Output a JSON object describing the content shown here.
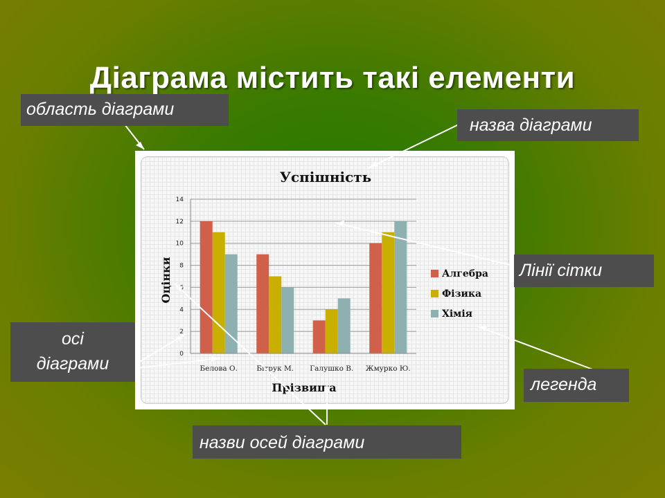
{
  "slide": {
    "title": "Діаграма містить такі елементи"
  },
  "callouts": {
    "chart_area": "область діаграми",
    "chart_title": "назва діаграми",
    "gridlines": "Лінії сітки",
    "axes_line1": "осі",
    "axes_line2": "діаграми",
    "legend": "легенда",
    "axis_titles": "назви осей діаграми"
  },
  "colors": {
    "algebra": "#d0604a",
    "physics": "#c9b000",
    "chemistry": "#8fb0b0",
    "callout_bg": "#4d4d4d"
  },
  "chart_data": {
    "type": "bar",
    "title": "Успішність",
    "xlabel": "Прізвища",
    "ylabel": "Оцінки",
    "categories": [
      "Белова О.",
      "Бітрук М.",
      "Галушко В.",
      "Жмурко Ю."
    ],
    "series": [
      {
        "name": "Алгебра",
        "values": [
          12,
          9,
          3,
          10
        ]
      },
      {
        "name": "Фізика",
        "values": [
          11,
          7,
          4,
          11
        ]
      },
      {
        "name": "Хімія",
        "values": [
          9,
          6,
          5,
          12
        ]
      }
    ],
    "ylim": [
      0,
      14
    ],
    "yticks": [
      "0",
      "2",
      "4",
      "6",
      "8",
      "10",
      "12",
      "14"
    ],
    "grid": true,
    "legend_position": "right"
  }
}
